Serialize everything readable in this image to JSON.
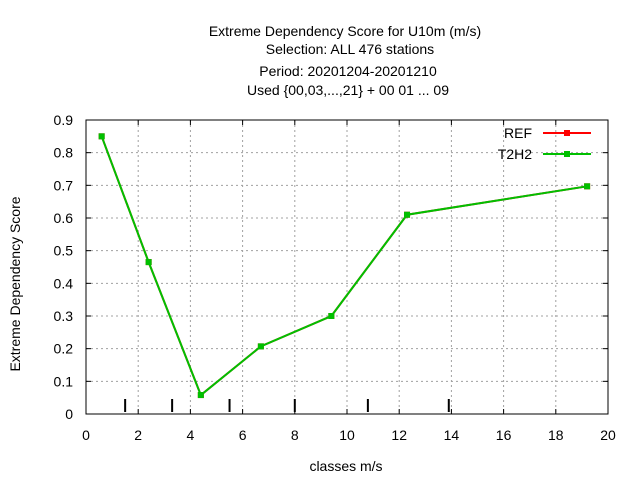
{
  "chart_data": {
    "type": "line",
    "title_lines": [
      "Extreme Dependency Score  for U10m (m/s)",
      "Selection: ALL    476 stations",
      "Period: 20201204-20201210",
      "Used {00,03,...,21} + 00 01 ... 09"
    ],
    "xlabel": "classes m/s",
    "ylabel": "Extreme Dependency Score",
    "xlim": [
      0,
      20
    ],
    "ylim": [
      0,
      0.9
    ],
    "xticks": [
      0,
      2,
      4,
      6,
      8,
      10,
      12,
      14,
      16,
      18,
      20
    ],
    "yticks": [
      0,
      0.1,
      0.2,
      0.3,
      0.4,
      0.5,
      0.6,
      0.7,
      0.8,
      0.9
    ],
    "grid": true,
    "legend_position": "top-right",
    "class_markers": [
      1.5,
      3.3,
      5.5,
      8.0,
      10.8,
      13.9
    ],
    "series": [
      {
        "name": "REF",
        "color": "#ff0000",
        "x": [
          0.6,
          2.4,
          4.4,
          6.7,
          9.4,
          12.3,
          19.2
        ],
        "y": [
          0.85,
          0.465,
          0.058,
          0.207,
          0.3,
          0.61,
          0.697
        ]
      },
      {
        "name": "T2H2",
        "color": "#00c000",
        "x": [
          0.6,
          2.4,
          4.4,
          6.7,
          9.4,
          12.3,
          19.2
        ],
        "y": [
          0.85,
          0.465,
          0.058,
          0.207,
          0.3,
          0.61,
          0.697
        ]
      }
    ]
  }
}
